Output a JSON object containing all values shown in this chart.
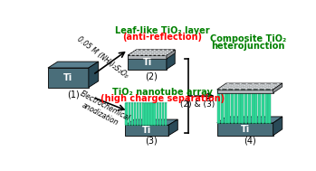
{
  "bg_color": "#ffffff",
  "ti_color": "#4a6e7a",
  "ti_top": "#5a8090",
  "ti_side": "#2a4a58",
  "leaf_face": "#b0b4b8",
  "leaf_dots": "#d4d8dc",
  "tube_color": "#30d898",
  "tube_dark": "#20a878",
  "tube_top_color": "#80eec8",
  "label1": "(1)",
  "label2": "(2)",
  "label3": "(3)",
  "label4": "(4)",
  "label23": "(2) & (3)",
  "text_top_green": "Leaf-like TiO₂ layer",
  "text_top_red": "(anti-reflection)",
  "text_bottom_green": "TiO₂ nanotube array",
  "text_bottom_red": "(high charge separation)",
  "text_right_green1": "Composite TiO₂",
  "text_right_green2": "heterojunction",
  "arrow_top_label": "0.05 M (NH₄)₂S₂O₈",
  "arrow_bottom_label": "Electrochemical\nanodization",
  "ti_label": "Ti"
}
